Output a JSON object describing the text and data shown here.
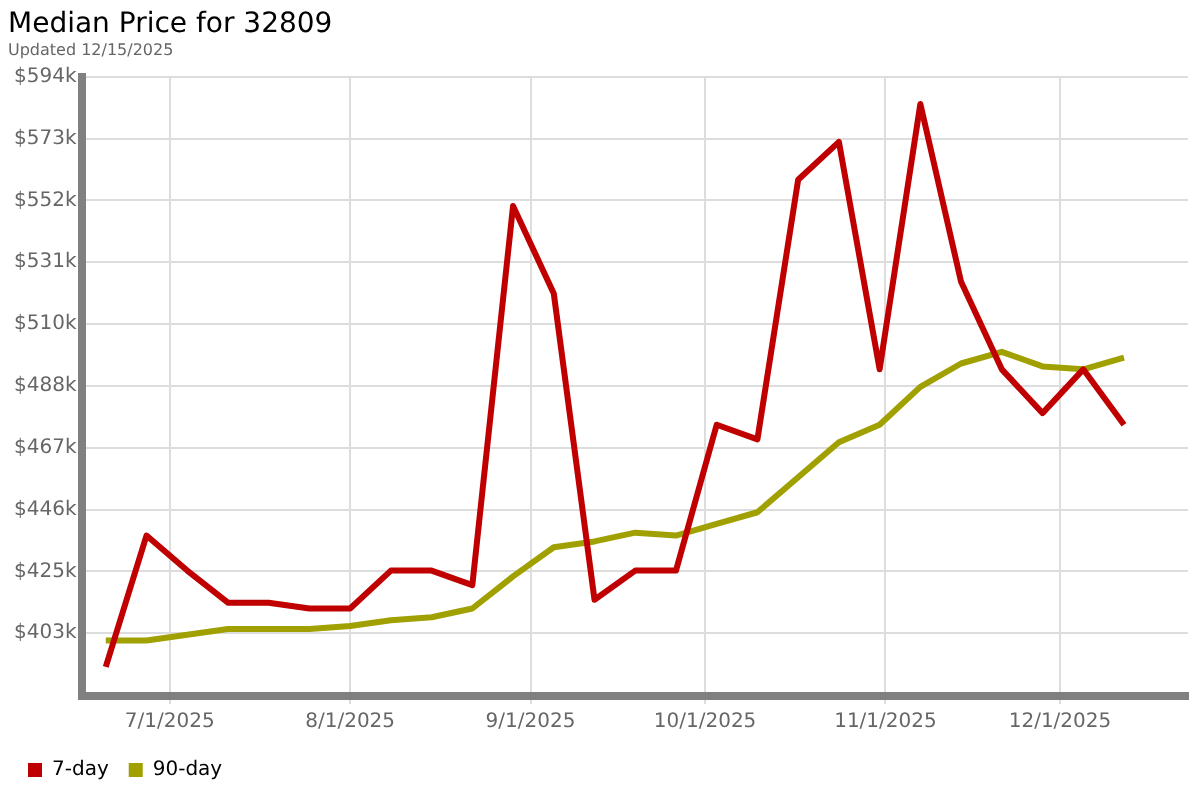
{
  "chart_data": {
    "type": "line",
    "title": "Median Price for 32809",
    "subtitle": "Updated 12/15/2025",
    "x": [
      "2025-06-20",
      "2025-06-27",
      "2025-07-04",
      "2025-07-11",
      "2025-07-18",
      "2025-07-25",
      "2025-08-01",
      "2025-08-08",
      "2025-08-15",
      "2025-08-22",
      "2025-08-29",
      "2025-09-05",
      "2025-09-12",
      "2025-09-19",
      "2025-09-26",
      "2025-10-03",
      "2025-10-10",
      "2025-10-17",
      "2025-10-24",
      "2025-10-31",
      "2025-11-07",
      "2025-11-14",
      "2025-11-21",
      "2025-11-28",
      "2025-12-05",
      "2025-12-12"
    ],
    "series": [
      {
        "name": "7-day",
        "color": "#c00000",
        "values": [
          392,
          437,
          425,
          414,
          414,
          412,
          412,
          425,
          425,
          420,
          550,
          520,
          415,
          425,
          425,
          475,
          470,
          559,
          572,
          494,
          585,
          524,
          494,
          479,
          494,
          475
        ]
      },
      {
        "name": "90-day",
        "color": "#a0a000",
        "values": [
          401,
          401,
          403,
          405,
          405,
          405,
          406,
          408,
          409,
          412,
          423,
          433,
          435,
          438,
          437,
          441,
          445,
          457,
          469,
          475,
          488,
          496,
          500,
          495,
          494,
          498
        ]
      }
    ],
    "xlim": [
      "2025-06-16",
      "2025-12-23"
    ],
    "xticks": [
      {
        "value": "2025-07-01",
        "label": "7/1/2025"
      },
      {
        "value": "2025-08-01",
        "label": "8/1/2025"
      },
      {
        "value": "2025-09-01",
        "label": "9/1/2025"
      },
      {
        "value": "2025-10-01",
        "label": "10/1/2025"
      },
      {
        "value": "2025-11-01",
        "label": "11/1/2025"
      },
      {
        "value": "2025-12-01",
        "label": "12/1/2025"
      }
    ],
    "ylim": [
      382,
      594.3
    ],
    "yticks": [
      {
        "value": 403.5,
        "label": "$403k"
      },
      {
        "value": 424.7,
        "label": "$425k"
      },
      {
        "value": 445.9,
        "label": "$446k"
      },
      {
        "value": 467.1,
        "label": "$467k"
      },
      {
        "value": 488.3,
        "label": "$488k"
      },
      {
        "value": 509.5,
        "label": "$510k"
      },
      {
        "value": 530.7,
        "label": "$531k"
      },
      {
        "value": 551.9,
        "label": "$552k"
      },
      {
        "value": 573.1,
        "label": "$573k"
      },
      {
        "value": 594.3,
        "label": "$594k"
      }
    ],
    "grid": true,
    "legend": "bottom left",
    "marker": "none",
    "line_style": "solid"
  }
}
